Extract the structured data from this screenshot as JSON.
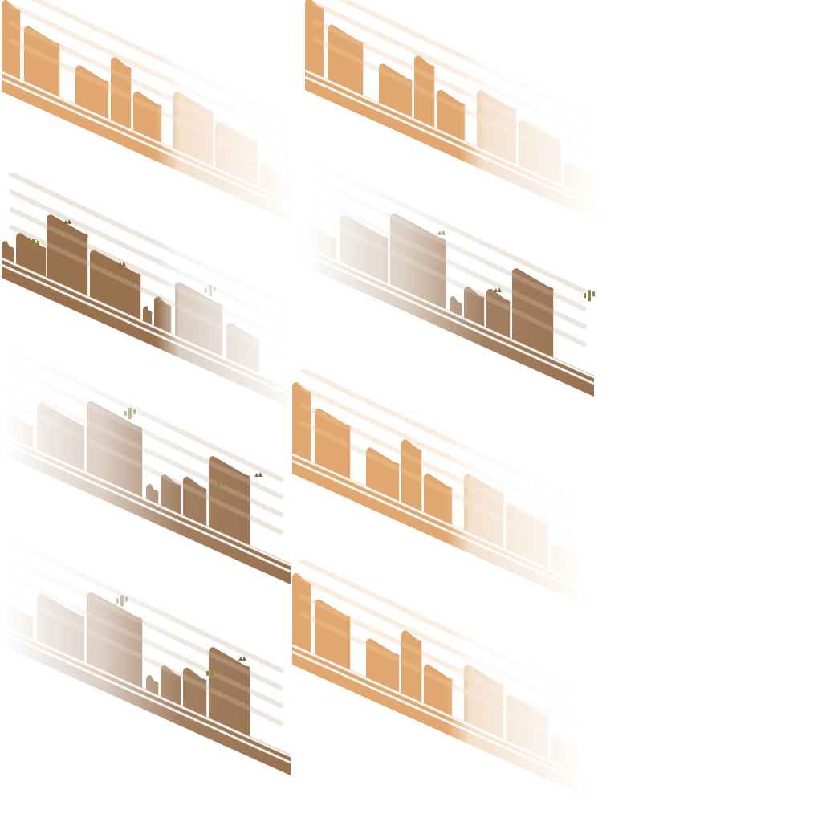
{
  "sheet": {
    "type": "isometric desert mesa terrain sprite sheet",
    "background": "#ffffff"
  },
  "colors": {
    "sand": "#e0a870",
    "sand_light": "#efc9a0",
    "rock": "#98714f",
    "rock_light": "#c9b4a0",
    "cactus": "#8a8040",
    "cactus_dark": "#6d6530",
    "highlight": "#ffffff"
  },
  "sprites": [
    {
      "name": "sand-mesa-strip",
      "variant": "sand",
      "fade": "right"
    },
    {
      "name": "sand-mesa-strip",
      "variant": "sand",
      "fade": "right"
    },
    {
      "name": "rock-mesa-strip",
      "variant": "rock",
      "fade": "right"
    },
    {
      "name": "rock-mesa-strip",
      "variant": "rock",
      "fade": "left"
    },
    {
      "name": "rock-mesa-strip",
      "variant": "rock",
      "fade": "left"
    },
    {
      "name": "sand-mesa-strip",
      "variant": "sand",
      "fade": "right"
    },
    {
      "name": "rock-mesa-strip",
      "variant": "rock",
      "fade": "left"
    },
    {
      "name": "sand-mesa-strip",
      "variant": "sand",
      "fade": "right"
    }
  ],
  "decorations": {
    "cactus_icon": "cactus-icon",
    "grass_icon": "grass-tuft-icon"
  }
}
